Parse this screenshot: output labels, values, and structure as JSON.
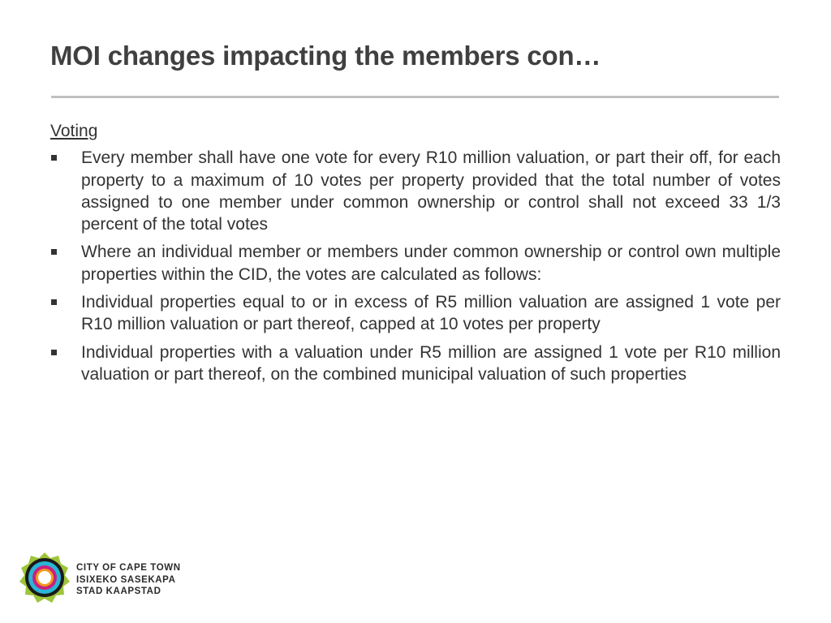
{
  "slide": {
    "title": "MOI changes impacting the members con…",
    "section_heading": "Voting",
    "bullets": [
      "Every member shall have one vote for every R10 million valuation, or part their off, for each property to a maximum of 10 votes per property provided that the total number of votes assigned to one member under common ownership or control shall not exceed 33 1/3 percent of the total votes",
      "Where an individual member or members under common ownership or control own multiple properties within the CID, the votes are calculated as follows:",
      "Individual properties equal to or in excess of R5 million valuation are assigned 1 vote per R10 million valuation or part thereof, capped at 10 votes per property",
      "Individual properties with a valuation under R5 million are assigned 1 vote per R10        million valuation or part thereof, on the combined municipal valuation of such properties"
    ]
  },
  "logo": {
    "lines": [
      "CITY OF CAPE TOWN",
      "ISIXEKO SASEKAPA",
      "STAD KAAPSTAD"
    ],
    "colors": {
      "outer": "#9dc43a",
      "ring": "#1a1a1a",
      "cyan": "#29b5d6",
      "magenta": "#c8217f",
      "orange": "#f39a1e"
    }
  }
}
